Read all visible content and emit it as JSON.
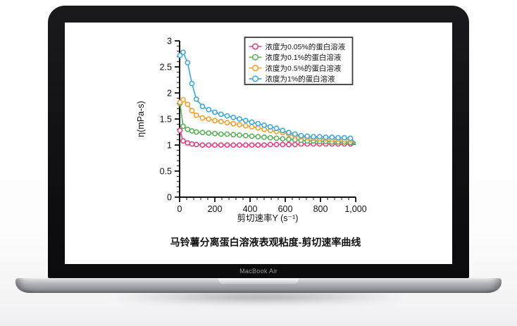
{
  "device": {
    "label": "MacBook Air"
  },
  "chart_data": {
    "type": "line",
    "title": "马铃薯分离蛋白溶液表观粘度-剪切速率曲线",
    "xlabel": "剪切速率Y (s⁻¹)",
    "ylabel": "η(mPa-s)",
    "xlim": [
      0,
      1000
    ],
    "ylim": [
      0,
      3
    ],
    "x_ticks": [
      0,
      200,
      400,
      600,
      800,
      1000
    ],
    "x_tick_labels": [
      "0",
      "200",
      "400",
      "600",
      "800",
      "1,000"
    ],
    "x_minor_step": 40,
    "y_ticks": [
      0,
      0.5,
      1,
      1.5,
      2,
      2.5,
      3
    ],
    "y_tick_labels": [
      "0",
      "0.5",
      "1",
      "1.5",
      "2",
      "2.5",
      "3"
    ],
    "y_minor_step": 0.1,
    "grid": false,
    "legend_position": "top-right",
    "x": [
      2,
      20,
      45,
      70,
      95,
      130,
      165,
      200,
      235,
      270,
      305,
      340,
      375,
      410,
      445,
      480,
      515,
      550,
      585,
      620,
      655,
      690,
      725,
      760,
      795,
      830,
      865,
      900,
      935,
      970,
      1000
    ],
    "series": [
      {
        "name": "浓度为0.05%的蛋白溶液",
        "color": "#e8417f",
        "values": [
          1.28,
          1.08,
          1.04,
          1.02,
          1.01,
          1.0,
          1.0,
          1.0,
          1.0,
          1.0,
          1.0,
          1.0,
          1.0,
          1.0,
          1.0,
          1.0,
          1.01,
          1.01,
          1.01,
          1.01,
          1.01,
          1.02,
          1.02,
          1.02,
          1.02,
          1.02,
          1.02,
          1.02,
          1.02,
          1.02,
          1.01
        ]
      },
      {
        "name": "浓度为0.1%的蛋白溶液",
        "color": "#5cb25c",
        "values": [
          1.8,
          1.36,
          1.3,
          1.27,
          1.25,
          1.24,
          1.23,
          1.22,
          1.21,
          1.21,
          1.2,
          1.19,
          1.18,
          1.17,
          1.16,
          1.15,
          1.14,
          1.13,
          1.12,
          1.11,
          1.1,
          1.09,
          1.08,
          1.08,
          1.07,
          1.07,
          1.06,
          1.06,
          1.06,
          1.05,
          1.02
        ]
      },
      {
        "name": "浓度为0.5%的蛋白溶液",
        "color": "#f5a02f",
        "values": [
          1.82,
          1.87,
          1.78,
          1.66,
          1.57,
          1.52,
          1.5,
          1.47,
          1.45,
          1.43,
          1.41,
          1.39,
          1.37,
          1.35,
          1.33,
          1.3,
          1.28,
          1.26,
          1.24,
          1.21,
          1.18,
          1.16,
          1.14,
          1.13,
          1.12,
          1.12,
          1.11,
          1.11,
          1.1,
          1.1,
          1.03
        ]
      },
      {
        "name": "浓度为1%的蛋白溶液",
        "color": "#41a9e1",
        "values": [
          2.72,
          2.78,
          2.58,
          2.18,
          1.88,
          1.74,
          1.68,
          1.63,
          1.59,
          1.56,
          1.53,
          1.5,
          1.47,
          1.44,
          1.41,
          1.38,
          1.35,
          1.32,
          1.28,
          1.24,
          1.21,
          1.18,
          1.17,
          1.16,
          1.16,
          1.15,
          1.15,
          1.14,
          1.14,
          1.13,
          1.04
        ]
      }
    ]
  }
}
